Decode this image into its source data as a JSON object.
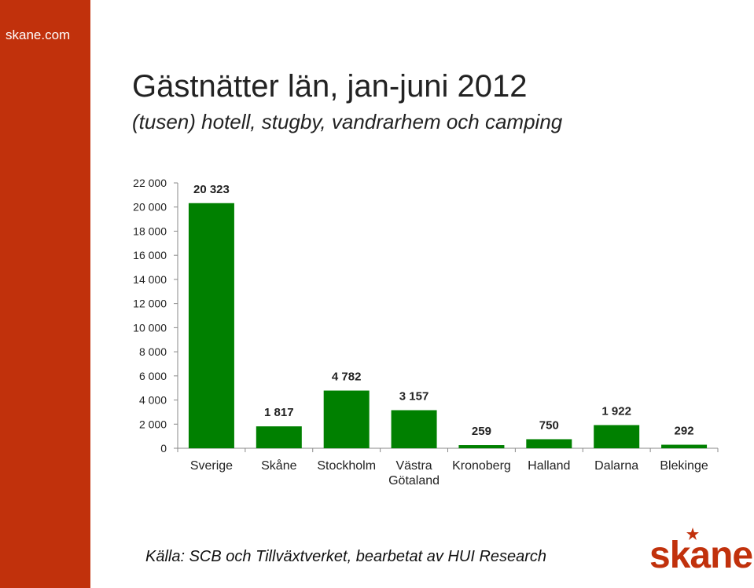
{
  "sidebar": {
    "site": "skane.com",
    "color": "#c1310c"
  },
  "title": "Gästnätter län, jan-juni 2012",
  "subtitle": "(tusen) hotell, stugby, vandrarhem och camping",
  "source": "Källa: SCB och Tillväxtverket, bearbetat av HUI Research",
  "logo": {
    "text": "skane",
    "color": "#c1310c",
    "icon": "star-icon"
  },
  "chart_data": {
    "type": "bar",
    "title": "",
    "xlabel": "",
    "ylabel": "",
    "categories": [
      "Sverige",
      "Skåne",
      "Stockholm",
      "Västra Götaland",
      "Kronoberg",
      "Halland",
      "Dalarna",
      "Blekinge"
    ],
    "category_lines": [
      [
        "Sverige"
      ],
      [
        "Skåne"
      ],
      [
        "Stockholm"
      ],
      [
        "Västra",
        "Götaland"
      ],
      [
        "Kronoberg"
      ],
      [
        "Halland"
      ],
      [
        "Dalarna"
      ],
      [
        "Blekinge"
      ]
    ],
    "values": [
      20323,
      1817,
      4782,
      3157,
      259,
      750,
      1922,
      292
    ],
    "value_labels": [
      "20 323",
      "1 817",
      "4 782",
      "3 157",
      "259",
      "750",
      "1 922",
      "292"
    ],
    "ylim": [
      0,
      22000
    ],
    "ytick_values": [
      0,
      2000,
      4000,
      6000,
      8000,
      10000,
      12000,
      14000,
      16000,
      18000,
      20000,
      22000
    ],
    "yticks": [
      "0",
      "2 000",
      "4 000",
      "6 000",
      "8 000",
      "10 000",
      "12 000",
      "14 000",
      "16 000",
      "18 000",
      "20 000",
      "22 000"
    ],
    "grid": false,
    "legend": "none",
    "bar_color": "#008000"
  }
}
